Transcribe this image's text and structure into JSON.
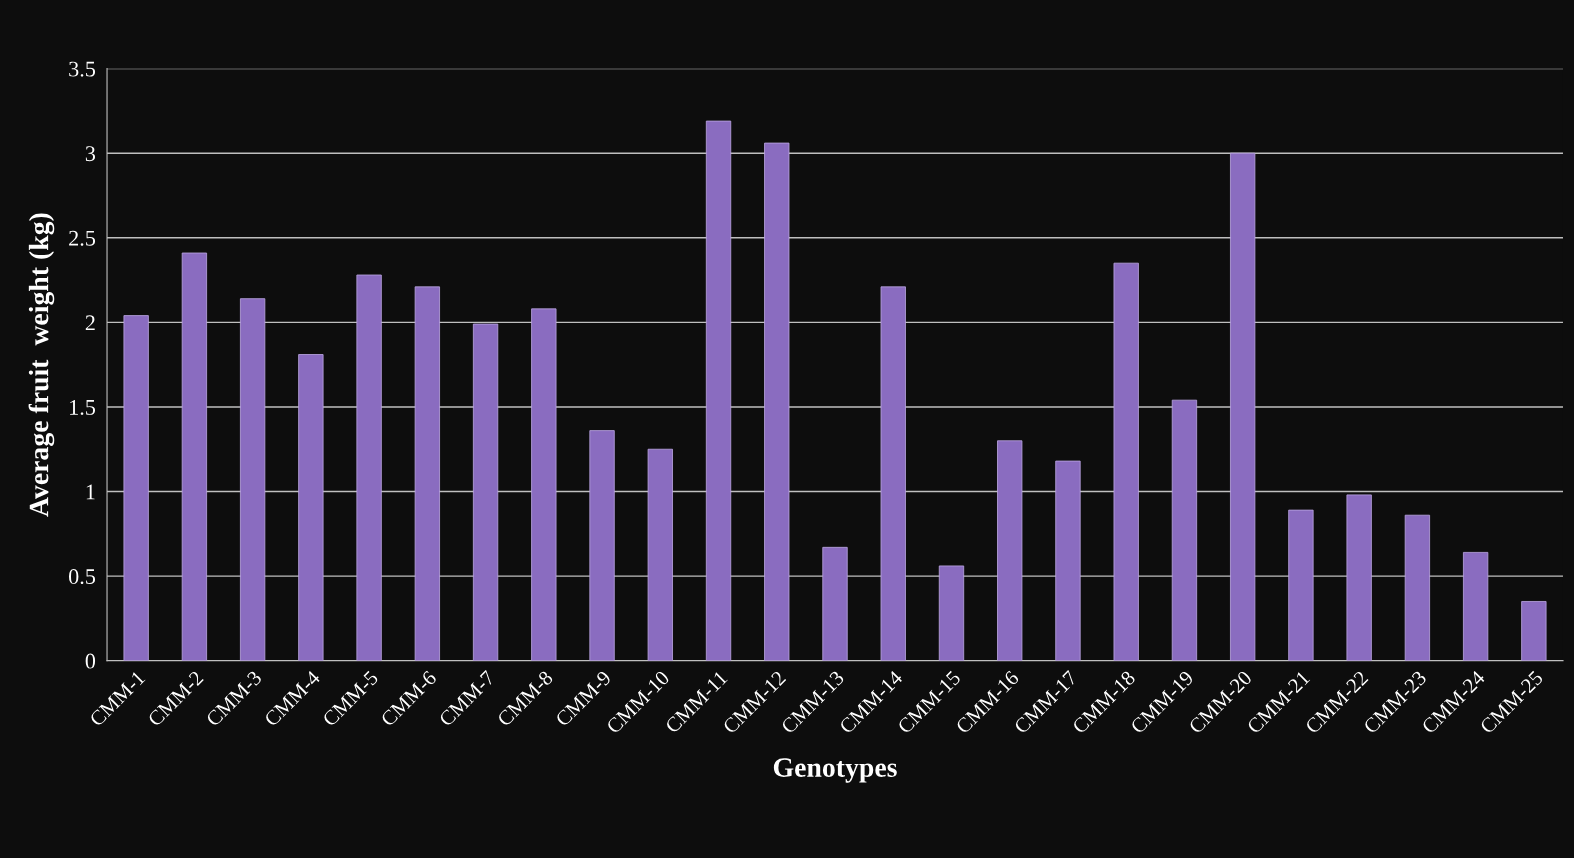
{
  "chart_data": {
    "type": "bar",
    "xlabel": "Genotypes",
    "ylabel": "Average fruit  weight (kg)",
    "categories": [
      "CMM-1",
      "CMM-2",
      "CMM-3",
      "CMM-4",
      "CMM-5",
      "CMM-6",
      "CMM-7",
      "CMM-8",
      "CMM-9",
      "CMM-10",
      "CMM-11",
      "CMM-12",
      "CMM-13",
      "CMM-14",
      "CMM-15",
      "CMM-16",
      "CMM-17",
      "CMM-18",
      "CMM-19",
      "CMM-20",
      "CMM-21",
      "CMM-22",
      "CMM-23",
      "CMM-24",
      "CMM-25"
    ],
    "values": [
      2.04,
      2.41,
      2.14,
      1.81,
      2.28,
      2.21,
      1.99,
      2.08,
      1.36,
      1.25,
      3.19,
      3.06,
      0.67,
      2.21,
      0.56,
      1.3,
      1.18,
      2.35,
      1.54,
      3.0,
      0.89,
      0.98,
      0.86,
      0.64,
      0.35
    ],
    "color": "#8a6cc0",
    "ylim": [
      0,
      3.5
    ],
    "yticks": [
      0,
      0.5,
      1,
      1.5,
      2,
      2.5,
      3,
      3.5
    ],
    "grid": "y",
    "legend": false
  }
}
